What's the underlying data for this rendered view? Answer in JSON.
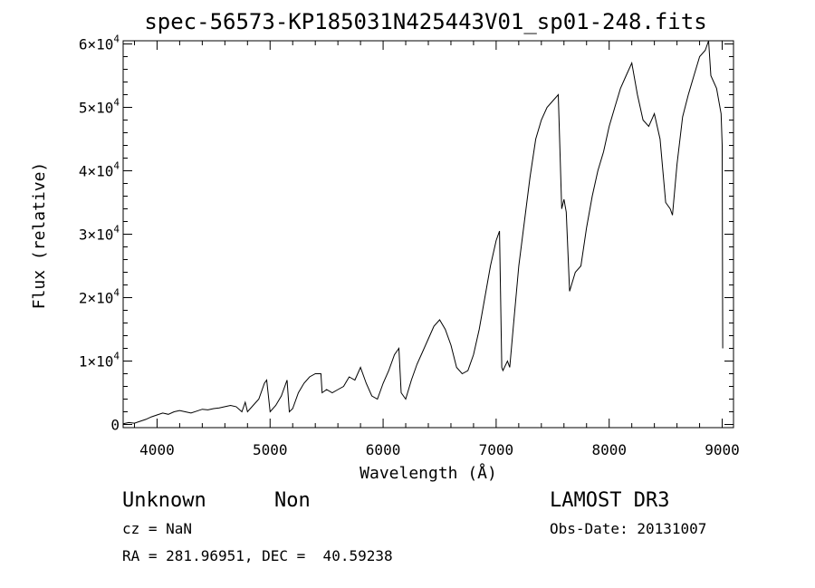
{
  "chart_data": {
    "type": "line",
    "title": "spec-56573-KP185031N425443V01_sp01-248.fits",
    "xlabel": "Wavelength (Å)",
    "ylabel": "Flux (relative)",
    "xlim": [
      3700,
      9100
    ],
    "ylim": [
      -500,
      60500
    ],
    "x_ticks": [
      4000,
      5000,
      6000,
      7000,
      8000,
      9000
    ],
    "x_tick_labels": [
      "4000",
      "5000",
      "6000",
      "7000",
      "8000",
      "9000"
    ],
    "y_ticks": [
      0,
      10000,
      20000,
      30000,
      40000,
      50000,
      60000
    ],
    "y_tick_labels": [
      {
        "mantissa": "0",
        "exp": ""
      },
      {
        "mantissa": "1×10",
        "exp": "4"
      },
      {
        "mantissa": "2×10",
        "exp": "4"
      },
      {
        "mantissa": "3×10",
        "exp": "4"
      },
      {
        "mantissa": "4×10",
        "exp": "4"
      },
      {
        "mantissa": "5×10",
        "exp": "4"
      },
      {
        "mantissa": "6×10",
        "exp": "4"
      }
    ],
    "grid": false,
    "series": [
      {
        "x": [
          3700,
          3750,
          3800,
          3850,
          3900,
          3950,
          4000,
          4050,
          4100,
          4150,
          4200,
          4250,
          4300,
          4350,
          4400,
          4450,
          4500,
          4550,
          4600,
          4650,
          4700,
          4750,
          4780,
          4800,
          4850,
          4900,
          4950,
          4970,
          5000,
          5050,
          5100,
          5150,
          5170,
          5200,
          5250,
          5300,
          5350,
          5400,
          5450,
          5460,
          5500,
          5550,
          5600,
          5650,
          5700,
          5750,
          5800,
          5850,
          5900,
          5950,
          6000,
          6050,
          6100,
          6140,
          6160,
          6200,
          6250,
          6300,
          6350,
          6400,
          6450,
          6500,
          6550,
          6600,
          6650,
          6700,
          6750,
          6800,
          6850,
          6900,
          6950,
          7000,
          7030,
          7050,
          7060,
          7100,
          7120,
          7150,
          7200,
          7250,
          7300,
          7350,
          7400,
          7450,
          7500,
          7550,
          7580,
          7600,
          7620,
          7650,
          7700,
          7750,
          7800,
          7850,
          7900,
          7950,
          8000,
          8050,
          8100,
          8150,
          8200,
          8250,
          8300,
          8350,
          8400,
          8450,
          8500,
          8540,
          8560,
          8600,
          8650,
          8700,
          8750,
          8800,
          8850,
          8880,
          8900,
          8950,
          8990,
          9000,
          9005
        ],
        "y": [
          100,
          300,
          200,
          500,
          800,
          1200,
          1500,
          1800,
          1600,
          2000,
          2200,
          2000,
          1800,
          2100,
          2400,
          2300,
          2500,
          2600,
          2800,
          3000,
          2800,
          2000,
          3500,
          2000,
          3000,
          4000,
          6500,
          7000,
          2000,
          3000,
          4500,
          7000,
          2000,
          2500,
          5000,
          6500,
          7500,
          8000,
          8000,
          5000,
          5500,
          5000,
          5500,
          6000,
          7500,
          7000,
          9000,
          6500,
          4500,
          4000,
          6500,
          8500,
          11000,
          12000,
          5000,
          4000,
          7000,
          9500,
          11500,
          13500,
          15500,
          16500,
          15000,
          12500,
          9000,
          8000,
          8500,
          11000,
          15000,
          20000,
          25000,
          29000,
          30500,
          9000,
          8500,
          10000,
          9000,
          15000,
          25000,
          32000,
          39000,
          45000,
          48000,
          50000,
          51000,
          52000,
          34000,
          35500,
          33500,
          21000,
          24000,
          25000,
          31000,
          36000,
          40000,
          43000,
          47000,
          50000,
          53000,
          55000,
          57000,
          52000,
          48000,
          47000,
          49000,
          45000,
          35000,
          34000,
          33000,
          41000,
          48500,
          52000,
          55000,
          58000,
          59000,
          60500,
          55000,
          53000,
          49000,
          44000,
          12000
        ]
      }
    ]
  },
  "annotations": {
    "obj_class": "Unknown",
    "obj_subclass": "Non",
    "survey": "LAMOST DR3",
    "cz": "cz = NaN",
    "obs_date": "Obs-Date: 20131007",
    "coords": "RA = 281.96951, DEC =  40.59238"
  }
}
